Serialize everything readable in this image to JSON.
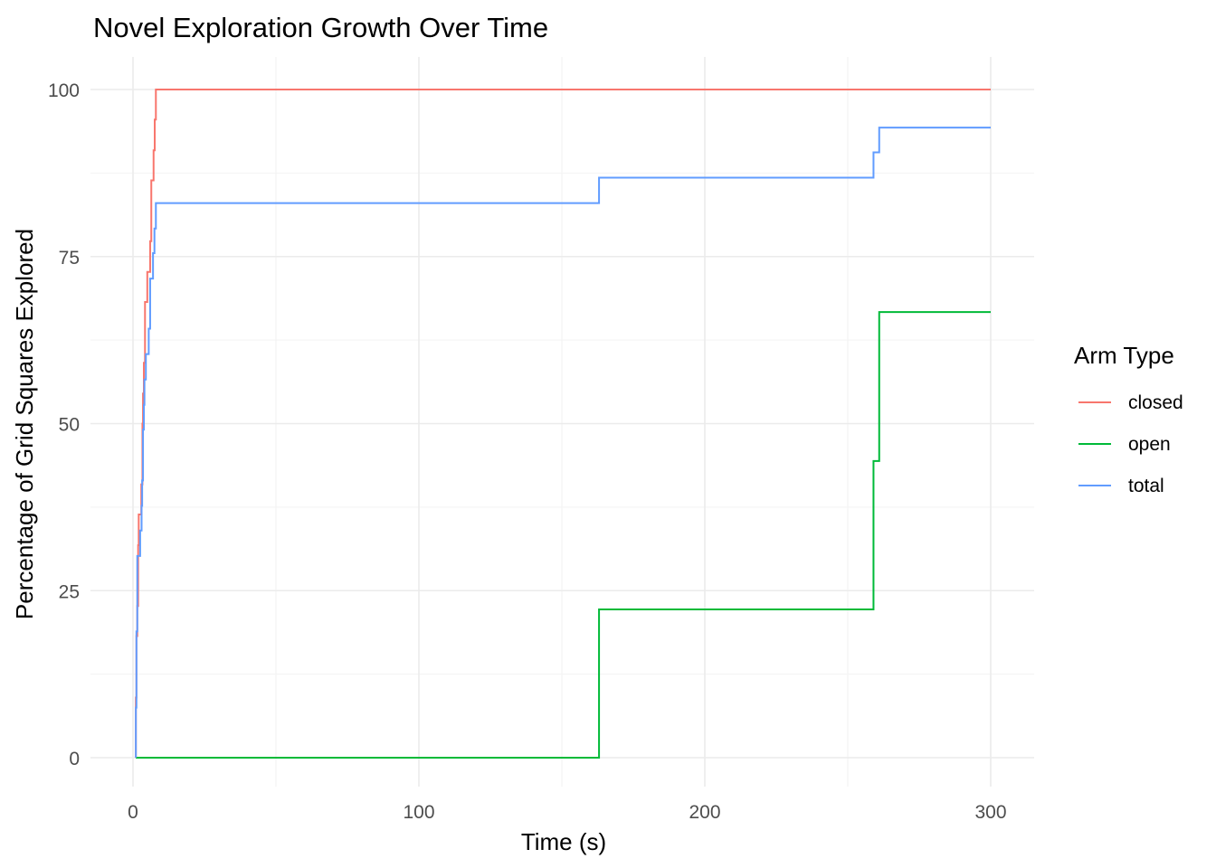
{
  "chart_data": {
    "type": "line",
    "step": true,
    "title": "Novel Exploration Growth Over Time",
    "xlabel": "Time (s)",
    "ylabel": "Percentage of Grid Squares Explored",
    "xlim": [
      0,
      300
    ],
    "ylim": [
      0,
      100
    ],
    "x_ticks": [
      0,
      100,
      200,
      300
    ],
    "x_minor_ticks": [
      50,
      150,
      250
    ],
    "y_ticks": [
      0,
      25,
      50,
      75,
      100
    ],
    "y_minor_ticks": [
      12.5,
      37.5,
      62.5,
      87.5
    ],
    "grid": true,
    "legend": {
      "title": "Arm Type",
      "position": "right"
    },
    "series": [
      {
        "name": "closed",
        "color": "#F8766D",
        "x": [
          1,
          1.2,
          1.5,
          1.8,
          2,
          2.5,
          2.9,
          3.3,
          3.5,
          3.8,
          4.2,
          5,
          5.5,
          6,
          6.4,
          6.9,
          7.2,
          7.6,
          8,
          300
        ],
        "y": [
          9,
          18.2,
          22.7,
          31.8,
          36.4,
          36.4,
          40.9,
          50,
          54.5,
          59.1,
          68.2,
          72.7,
          72.7,
          77.3,
          86.4,
          86.4,
          90.9,
          95.5,
          100,
          100
        ]
      },
      {
        "name": "open",
        "color": "#00BA38",
        "x": [
          1,
          163,
          259,
          261,
          300
        ],
        "y": [
          0,
          22.2,
          44.4,
          66.7,
          66.7
        ]
      },
      {
        "name": "total",
        "color": "#619CFF",
        "x": [
          1,
          1.2,
          1.5,
          2,
          2.5,
          3,
          3.2,
          3.5,
          3.8,
          4,
          4.5,
          5,
          5.5,
          6,
          6.5,
          7,
          7.5,
          8,
          163,
          259,
          261,
          300
        ],
        "y": [
          7.5,
          18.9,
          30.2,
          30.2,
          34,
          37.7,
          41.5,
          49.1,
          52.8,
          56.6,
          60.4,
          60.4,
          64.2,
          71.7,
          71.7,
          75.5,
          79.2,
          83,
          86.8,
          90.6,
          94.3,
          94.3
        ]
      }
    ]
  }
}
